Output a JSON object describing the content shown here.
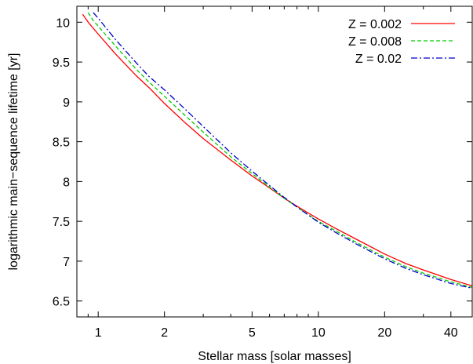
{
  "chart_data": {
    "type": "line",
    "title": "",
    "xlabel": "Stellar mass [solar masses]",
    "ylabel": "logarithmic main−sequence lifetime [yr]",
    "xscale": "log",
    "xlim": [
      0.8,
      50
    ],
    "ylim": [
      6.3,
      10.2
    ],
    "xticks": [
      1,
      2,
      5,
      10,
      20,
      40
    ],
    "xtick_labels": [
      "1",
      "2",
      "5",
      "10",
      "20",
      "40"
    ],
    "yticks": [
      6.5,
      7,
      7.5,
      8,
      8.5,
      9,
      9.5,
      10
    ],
    "ytick_labels": [
      "6.5",
      "7",
      "7.5",
      "8",
      "8.5",
      "9",
      "9.5",
      "10"
    ],
    "grid": false,
    "legend_position": "top-right",
    "series": [
      {
        "name": "Z = 0.002",
        "color": "#ff0000",
        "dash": "solid",
        "x": [
          0.85,
          0.9,
          1.0,
          1.2,
          1.5,
          1.7,
          2.0,
          2.5,
          3.0,
          4.0,
          5.0,
          6.0,
          7.0,
          8.0,
          10.0,
          12.0,
          15.0,
          20.0,
          25.0,
          30.0,
          40.0,
          50.0
        ],
        "y": [
          10.1,
          10.0,
          9.85,
          9.6,
          9.32,
          9.18,
          8.98,
          8.73,
          8.54,
          8.27,
          8.07,
          7.92,
          7.79,
          7.69,
          7.53,
          7.41,
          7.27,
          7.09,
          6.97,
          6.89,
          6.77,
          6.69
        ]
      },
      {
        "name": "Z = 0.008",
        "color": "#00cc00",
        "dash": "dashed",
        "x": [
          0.9,
          0.95,
          1.0,
          1.2,
          1.5,
          1.7,
          2.0,
          2.5,
          3.0,
          4.0,
          5.0,
          6.0,
          7.0,
          8.0,
          10.0,
          12.0,
          15.0,
          20.0,
          25.0,
          30.0,
          40.0,
          50.0
        ],
        "y": [
          10.12,
          10.02,
          9.95,
          9.7,
          9.4,
          9.25,
          9.07,
          8.82,
          8.62,
          8.31,
          8.1,
          7.93,
          7.79,
          7.68,
          7.5,
          7.38,
          7.23,
          7.05,
          6.93,
          6.85,
          6.74,
          6.67
        ]
      },
      {
        "name": "Z = 0.02",
        "color": "#0000cc",
        "dash": "dashdot",
        "x": [
          0.95,
          1.0,
          1.2,
          1.5,
          1.7,
          2.0,
          2.5,
          3.0,
          4.0,
          5.0,
          6.0,
          7.0,
          8.0,
          10.0,
          12.0,
          15.0,
          20.0,
          25.0,
          30.0,
          40.0,
          50.0
        ],
        "y": [
          10.12,
          10.05,
          9.78,
          9.48,
          9.32,
          9.15,
          8.9,
          8.69,
          8.36,
          8.13,
          7.95,
          7.8,
          7.68,
          7.49,
          7.36,
          7.21,
          7.03,
          6.91,
          6.83,
          6.72,
          6.66
        ]
      }
    ]
  }
}
